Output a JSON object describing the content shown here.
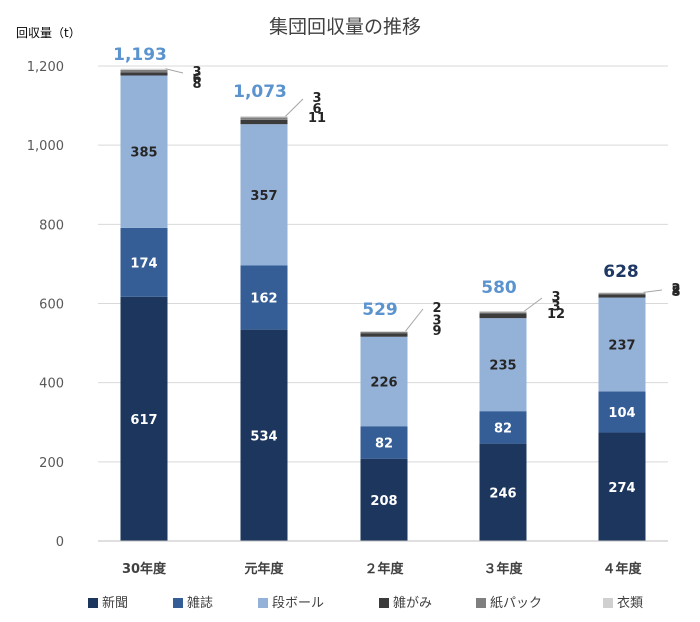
{
  "chart_data": {
    "type": "stacked-bar",
    "title": "集団回収量の推移",
    "ylabel": "回収量（t）",
    "xlabel": "",
    "ylim": [
      0,
      1200
    ],
    "yticks": [
      0,
      200,
      400,
      600,
      800,
      1000,
      1200
    ],
    "ytick_labels": [
      "0",
      "200",
      "400",
      "600",
      "800",
      "1,000",
      "1,200"
    ],
    "categories": [
      "30年度",
      "元年度",
      "２年度",
      "３年度",
      "４年度"
    ],
    "series": [
      {
        "name": "新聞",
        "color": "#1c365e",
        "values": [
          617,
          534,
          208,
          246,
          274
        ]
      },
      {
        "name": "雑誌",
        "color": "#355e97",
        "values": [
          174,
          162,
          82,
          82,
          104
        ]
      },
      {
        "name": "段ボール",
        "color": "#94b2d8",
        "values": [
          385,
          357,
          226,
          235,
          237
        ]
      },
      {
        "name": "雑がみ",
        "color": "#3b3b3b",
        "values": [
          8,
          11,
          9,
          12,
          8
        ]
      },
      {
        "name": "紙パック",
        "color": "#7f7f7f",
        "values": [
          6,
          6,
          3,
          3,
          3
        ]
      },
      {
        "name": "衣類",
        "color": "#d0d0d0",
        "values": [
          3,
          3,
          2,
          3,
          2
        ]
      }
    ],
    "totals": [
      "1,193",
      "1,073",
      "529",
      "580",
      "628"
    ],
    "total_colors": [
      "#5b93cf",
      "#5b93cf",
      "#5b93cf",
      "#5b93cf",
      "#1f3864"
    ],
    "legend_position": "bottom",
    "grid": true
  }
}
